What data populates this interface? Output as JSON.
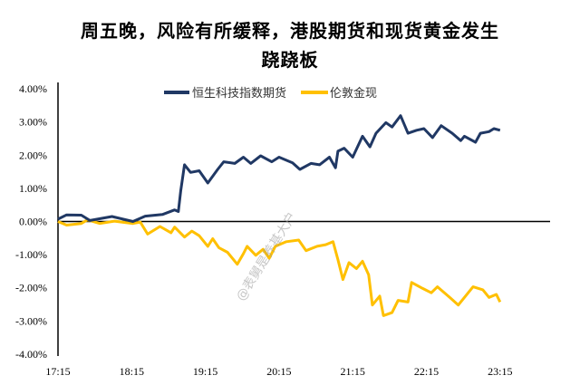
{
  "title_line1": "周五晚，风险有所缓释，港股期货和现货黄金发生",
  "title_line2": "跷跷板",
  "watermark": "@表舅是养基大户",
  "chart_data": {
    "type": "line",
    "title": "周五晚，风险有所缓释，港股期货和现货黄金发生跷跷板",
    "xlabel": "",
    "ylabel": "",
    "ylim": [
      -4,
      4
    ],
    "yticks": [
      "4.00%",
      "3.00%",
      "2.00%",
      "1.00%",
      "0.00%",
      "-1.00%",
      "-2.00%",
      "-3.00%",
      "-4.00%"
    ],
    "yvalues": [
      4,
      3,
      2,
      1,
      0,
      -1,
      -2,
      -3,
      -4
    ],
    "xticks": [
      "17:15",
      "18:15",
      "19:15",
      "20:15",
      "21:15",
      "22:15",
      "23:15"
    ],
    "x_unit": "minutes since 17:15",
    "xlim": [
      0,
      390
    ],
    "legend_position": "top-center",
    "grid": false,
    "series": [
      {
        "name": "恒生科技指数期货",
        "color": "#203864",
        "x": [
          0,
          7,
          19,
          26,
          44,
          61,
          71,
          85,
          95,
          98,
          100,
          103,
          108,
          115,
          122,
          130,
          135,
          144,
          151,
          157,
          165,
          174,
          180,
          191,
          197,
          206,
          213,
          221,
          226,
          228,
          233,
          240,
          248,
          254,
          259,
          267,
          272,
          279,
          285,
          292,
          298,
          305,
          312,
          321,
          328,
          331,
          340,
          344,
          351,
          355,
          360
        ],
        "y": [
          0.07,
          0.2,
          0.19,
          0.03,
          0.15,
          0.0,
          0.16,
          0.21,
          0.35,
          0.3,
          0.94,
          1.71,
          1.48,
          1.53,
          1.16,
          1.57,
          1.8,
          1.75,
          1.94,
          1.75,
          1.98,
          1.8,
          1.94,
          1.77,
          1.57,
          1.75,
          1.71,
          1.94,
          1.62,
          2.12,
          2.21,
          1.94,
          2.57,
          2.25,
          2.66,
          2.98,
          2.85,
          3.19,
          2.66,
          2.75,
          2.8,
          2.53,
          2.89,
          2.66,
          2.44,
          2.57,
          2.39,
          2.66,
          2.71,
          2.8,
          2.75
        ]
      },
      {
        "name": "伦敦金现",
        "color": "#FFC000",
        "x": [
          0,
          7,
          19,
          24,
          34,
          46,
          61,
          67,
          73,
          83,
          92,
          95,
          103,
          109,
          115,
          122,
          126,
          131,
          138,
          146,
          151,
          154,
          161,
          167,
          172,
          177,
          186,
          196,
          202,
          211,
          218,
          224,
          228,
          232,
          237,
          243,
          248,
          253,
          256,
          262,
          265,
          272,
          277,
          285,
          288,
          297,
          304,
          309,
          319,
          326,
          338,
          346,
          351,
          357,
          360
        ],
        "y": [
          0,
          -0.11,
          -0.06,
          0.05,
          -0.06,
          0.01,
          -0.06,
          -0.02,
          -0.38,
          -0.15,
          -0.34,
          -0.17,
          -0.47,
          -0.29,
          -0.43,
          -0.75,
          -0.52,
          -0.79,
          -0.93,
          -1.29,
          -0.97,
          -0.75,
          -1.02,
          -0.84,
          -1.11,
          -0.75,
          -0.61,
          -0.56,
          -0.88,
          -0.75,
          -0.7,
          -0.61,
          -1.15,
          -1.75,
          -1.24,
          -1.42,
          -1.2,
          -1.61,
          -2.52,
          -2.25,
          -2.84,
          -2.75,
          -2.38,
          -2.43,
          -1.84,
          -2.02,
          -2.15,
          -1.97,
          -2.29,
          -2.52,
          -1.97,
          -2.06,
          -2.29,
          -2.2,
          -2.43
        ]
      }
    ]
  }
}
